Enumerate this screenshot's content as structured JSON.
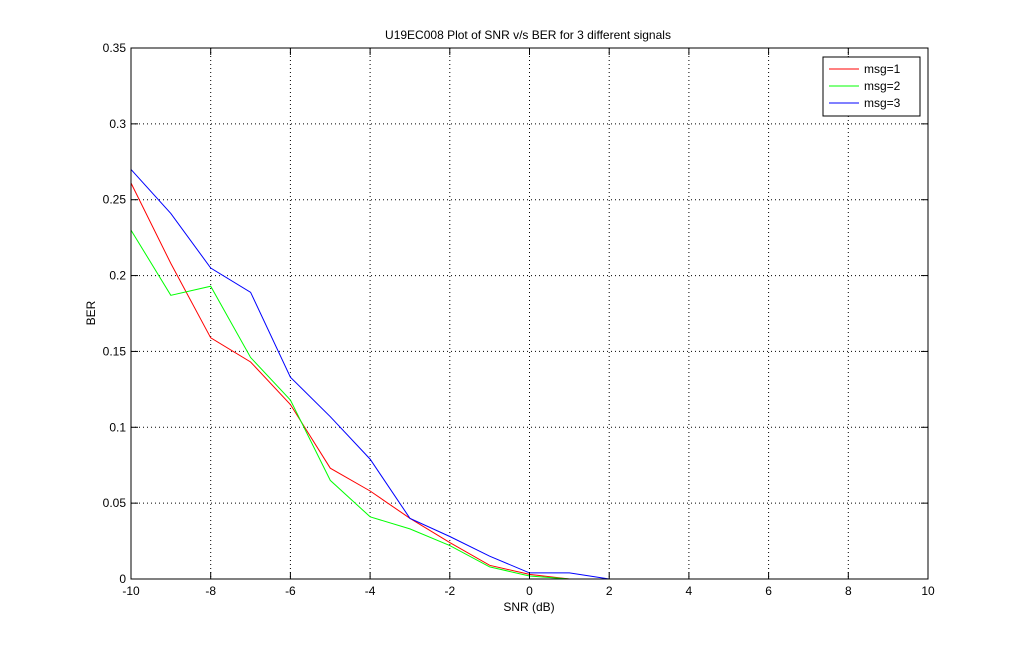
{
  "chart_data": {
    "type": "line",
    "title": "U19EC008 Plot of SNR v/s BER for 3 different signals",
    "xlabel": "SNR (dB)",
    "ylabel": "BER",
    "xlim": [
      -10,
      10
    ],
    "ylim": [
      0,
      0.35
    ],
    "xticks": [
      -10,
      -8,
      -6,
      -4,
      -2,
      0,
      2,
      4,
      6,
      8,
      10
    ],
    "yticks": [
      0,
      0.05,
      0.1,
      0.15,
      0.2,
      0.25,
      0.3,
      0.35
    ],
    "xtick_labels": [
      "-10",
      "-8",
      "-6",
      "-4",
      "-2",
      "0",
      "2",
      "4",
      "6",
      "8",
      "10"
    ],
    "ytick_labels": [
      "0",
      "0.05",
      "0.1",
      "0.15",
      "0.2",
      "0.25",
      "0.3",
      "0.35"
    ],
    "grid": true,
    "legend_position": "top-right",
    "x": [
      -10,
      -9,
      -8,
      -7,
      -6,
      -5,
      -4,
      -3,
      -2,
      -1,
      0,
      1,
      2,
      3,
      4,
      5,
      6,
      7,
      8,
      9,
      10
    ],
    "series": [
      {
        "name": "msg=1",
        "color": "#ff0000",
        "values": [
          0.261,
          0.208,
          0.159,
          0.143,
          0.115,
          0.073,
          0.058,
          0.04,
          0.024,
          0.009,
          0.003,
          0.0,
          0.0,
          0.0,
          0.0,
          0.0,
          0.0,
          0.0,
          0.0,
          0.0,
          0.0
        ]
      },
      {
        "name": "msg=2",
        "color": "#00ff00",
        "values": [
          0.23,
          0.187,
          0.193,
          0.146,
          0.118,
          0.065,
          0.041,
          0.033,
          0.022,
          0.008,
          0.002,
          0.0,
          0.0,
          0.0,
          0.0,
          0.0,
          0.0,
          0.0,
          0.0,
          0.0,
          0.0
        ]
      },
      {
        "name": "msg=3",
        "color": "#0000ff",
        "values": [
          0.27,
          0.241,
          0.205,
          0.189,
          0.133,
          0.107,
          0.079,
          0.04,
          0.028,
          0.015,
          0.004,
          0.004,
          0.0,
          0.0,
          0.0,
          0.0,
          0.0,
          0.0,
          0.0,
          0.0,
          0.0
        ]
      }
    ]
  }
}
